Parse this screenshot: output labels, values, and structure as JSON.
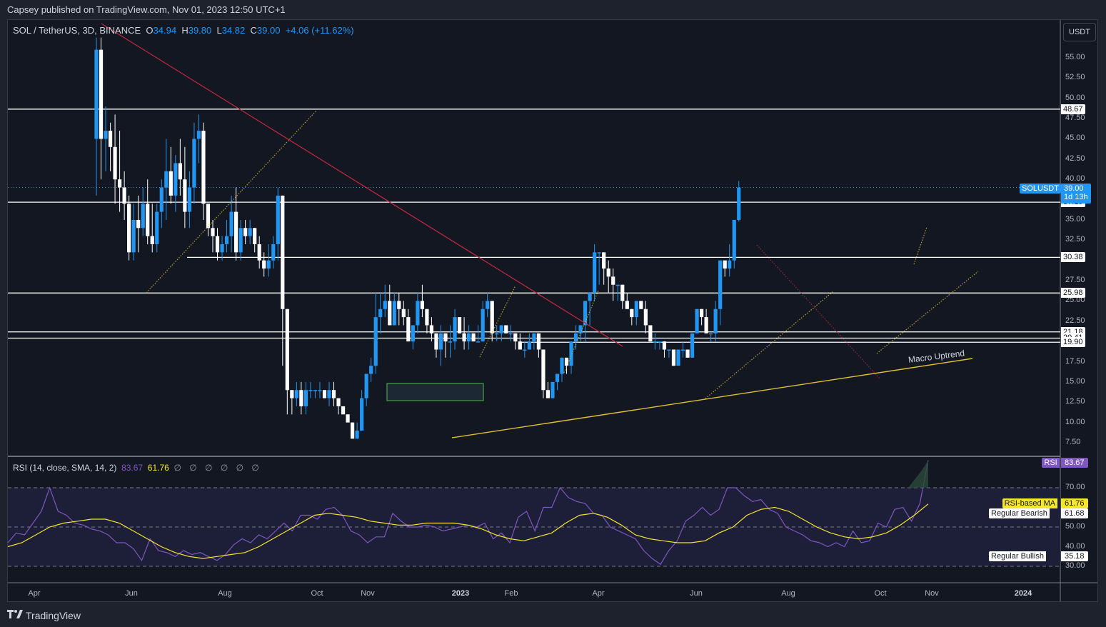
{
  "publish_line": "Capsey published on TradingView.com, Nov 01, 2023 12:50 UTC+1",
  "symbol": {
    "title": "SOL / TetherUS, 3D, BINANCE",
    "o_label": "O",
    "o": "34.94",
    "h_label": "H",
    "h": "39.80",
    "l_label": "L",
    "l": "34.82",
    "c_label": "C",
    "c": "39.00",
    "change": "+4.06 (+11.62%)"
  },
  "currency_button": "USDT",
  "price_axis": {
    "ticks": [
      "55.00",
      "52.50",
      "50.00",
      "47.50",
      "45.00",
      "42.50",
      "40.00",
      "35.00",
      "32.50",
      "27.50",
      "25.00",
      "22.50",
      "17.50",
      "15.00",
      "12.50",
      "10.00",
      "7.50"
    ],
    "level_tags": [
      "48.67",
      "37.19",
      "30.38",
      "25.98",
      "21.18",
      "20.41",
      "19.90"
    ],
    "last_price_tag": {
      "symbol": "SOLUSDT",
      "price": "39.00",
      "countdown": "1d 13h"
    }
  },
  "rsi": {
    "title": "RSI (14, close, SMA, 14, 2)",
    "value": "83.67",
    "ma_value": "61.76",
    "null_values": "∅ ∅ ∅ ∅ ∅ ∅",
    "axis_ticks": [
      "70.00",
      "50.00",
      "40.00",
      "30.00"
    ],
    "tags": {
      "rsi_label": "RSI",
      "rsi_value": "83.67",
      "ma_label": "RSI-based MA",
      "ma_value": "61.76",
      "bearish_label": "Regular Bearish",
      "bearish_value": "61.68",
      "bullish_label": "Regular Bullish",
      "bullish_value": "35.18"
    }
  },
  "time_axis": [
    "Apr",
    "Jun",
    "Aug",
    "Oct",
    "Nov",
    "2023",
    "Feb",
    "Apr",
    "Jun",
    "Aug",
    "Oct",
    "Nov",
    "2024"
  ],
  "annotation": "Macro Uptrend",
  "footer_brand": "TradingView",
  "colors": {
    "up": "#2196f3",
    "down": "#ffffff",
    "rsi": "#7e57c2",
    "rsi_ma": "#f5e52e",
    "trend": "#e0c02f",
    "resistance": "#c2283f",
    "range_box": "#4caf50"
  },
  "chart_data": {
    "type": "candlestick",
    "title": "SOL / TetherUS, 3D, BINANCE",
    "ylabel": "USDT",
    "ylim": [
      6,
      58
    ],
    "horizontal_levels": [
      48.67,
      37.19,
      30.38,
      25.98,
      21.18,
      20.41,
      19.9
    ],
    "last_close": 39.0,
    "candles_ohlc": [
      [
        45,
        58,
        38,
        56
      ],
      [
        56,
        58,
        40,
        45
      ],
      [
        45,
        49,
        41,
        46
      ],
      [
        46,
        47,
        41,
        44
      ],
      [
        44,
        48,
        37,
        40
      ],
      [
        40,
        46,
        36,
        39
      ],
      [
        39,
        41,
        35,
        37
      ],
      [
        37,
        38,
        30,
        31
      ],
      [
        31,
        37,
        30,
        35
      ],
      [
        35,
        38,
        31,
        34
      ],
      [
        34,
        39,
        33,
        37
      ],
      [
        37,
        40,
        32,
        33
      ],
      [
        33,
        37,
        31,
        32
      ],
      [
        32,
        37,
        31,
        36
      ],
      [
        36,
        40,
        34,
        39
      ],
      [
        39,
        45,
        35,
        41
      ],
      [
        41,
        44,
        37,
        38
      ],
      [
        38,
        43,
        36,
        42
      ],
      [
        42,
        45,
        38,
        40
      ],
      [
        40,
        44,
        34,
        36
      ],
      [
        36,
        41,
        34,
        39
      ],
      [
        39,
        47,
        37,
        45
      ],
      [
        45,
        48,
        42,
        46
      ],
      [
        46,
        47,
        35,
        37
      ],
      [
        37,
        35,
        33,
        34
      ],
      [
        34,
        35,
        31,
        33
      ],
      [
        33,
        34,
        30,
        31
      ],
      [
        31,
        33,
        30,
        32
      ],
      [
        32,
        35,
        31,
        33
      ],
      [
        33,
        38,
        31,
        36
      ],
      [
        36,
        39,
        30,
        31
      ],
      [
        31,
        35,
        30,
        34
      ],
      [
        34,
        35,
        32,
        33
      ],
      [
        33,
        35,
        32,
        34
      ],
      [
        34,
        34,
        31,
        32
      ],
      [
        32,
        33,
        29,
        30
      ],
      [
        30,
        31,
        28,
        29
      ],
      [
        29,
        32,
        28,
        30
      ],
      [
        30,
        33,
        29,
        32
      ],
      [
        32,
        39,
        30,
        38
      ],
      [
        38,
        38,
        17,
        24
      ],
      [
        24,
        24,
        11,
        14
      ],
      [
        14,
        14,
        11,
        13
      ],
      [
        13,
        15,
        12,
        14
      ],
      [
        14,
        15,
        11,
        12
      ],
      [
        12,
        15,
        11,
        14
      ],
      [
        14,
        15,
        13,
        14
      ],
      [
        14,
        14,
        13,
        14
      ],
      [
        14,
        15,
        13,
        14
      ],
      [
        14,
        14,
        13,
        13
      ],
      [
        13,
        15,
        12,
        14
      ],
      [
        14,
        15,
        12,
        13
      ],
      [
        13,
        13,
        11,
        12
      ],
      [
        12,
        12,
        11,
        11
      ],
      [
        11,
        11,
        10,
        10
      ],
      [
        10,
        10,
        8,
        8
      ],
      [
        8,
        10,
        8,
        9
      ],
      [
        9,
        14,
        9,
        13
      ],
      [
        13,
        16,
        12,
        16
      ],
      [
        16,
        18,
        15,
        17
      ],
      [
        17,
        26,
        16,
        23
      ],
      [
        23,
        26,
        21,
        24
      ],
      [
        24,
        27,
        23,
        25
      ],
      [
        25,
        27,
        22,
        22
      ],
      [
        22,
        26,
        23,
        25
      ],
      [
        25,
        26,
        22,
        24
      ],
      [
        24,
        25,
        22,
        23
      ],
      [
        23,
        24,
        20,
        20
      ],
      [
        20,
        22,
        19,
        22
      ],
      [
        22,
        26,
        21,
        25
      ],
      [
        25,
        27,
        23,
        24
      ],
      [
        24,
        24,
        21,
        22
      ],
      [
        22,
        23,
        20,
        21
      ],
      [
        21,
        21,
        18,
        19
      ],
      [
        19,
        22,
        17,
        21
      ],
      [
        21,
        21,
        18,
        20
      ],
      [
        20,
        22,
        18,
        20
      ],
      [
        20,
        24,
        19,
        23
      ],
      [
        23,
        23,
        21,
        21
      ],
      [
        21,
        23,
        19,
        20
      ],
      [
        20,
        22,
        19,
        21
      ],
      [
        21,
        21,
        20,
        20
      ],
      [
        20,
        22,
        20,
        20
      ],
      [
        20,
        25,
        20,
        24
      ],
      [
        24,
        26,
        23,
        25
      ],
      [
        25,
        25,
        20,
        21
      ],
      [
        21,
        22,
        20,
        21
      ],
      [
        21,
        22,
        20,
        22
      ],
      [
        22,
        22,
        21,
        21
      ],
      [
        21,
        22,
        20,
        21
      ],
      [
        21,
        21,
        19,
        20
      ],
      [
        20,
        21,
        19,
        19
      ],
      [
        19,
        20,
        18,
        19
      ],
      [
        19,
        21,
        19,
        20
      ],
      [
        20,
        21,
        19,
        21
      ],
      [
        21,
        21,
        18,
        19
      ],
      [
        19,
        19,
        13,
        14
      ],
      [
        14,
        15,
        13,
        13
      ],
      [
        13,
        15,
        13,
        15
      ],
      [
        15,
        16,
        14,
        16
      ],
      [
        16,
        18,
        15,
        18
      ],
      [
        18,
        18,
        16,
        17
      ],
      [
        17,
        20,
        16,
        20
      ],
      [
        20,
        22,
        19,
        21
      ],
      [
        21,
        21,
        20,
        22
      ],
      [
        22,
        25,
        20,
        25
      ],
      [
        25,
        26,
        22,
        26
      ],
      [
        26,
        32,
        25,
        31
      ],
      [
        31,
        30,
        27,
        31
      ],
      [
        31,
        31,
        27,
        29
      ],
      [
        29,
        30,
        26,
        28
      ],
      [
        28,
        29,
        25,
        27
      ],
      [
        27,
        27,
        25,
        27
      ],
      [
        27,
        27,
        24,
        25
      ],
      [
        25,
        26,
        24,
        24
      ],
      [
        24,
        24,
        22,
        23
      ],
      [
        23,
        25,
        22,
        25
      ],
      [
        25,
        25,
        24,
        24
      ],
      [
        24,
        25,
        21,
        22
      ],
      [
        22,
        22,
        20,
        20
      ],
      [
        20,
        21,
        19,
        20
      ],
      [
        20,
        20,
        19,
        20
      ],
      [
        20,
        20,
        18,
        19
      ],
      [
        19,
        19,
        18,
        19
      ],
      [
        19,
        19,
        17,
        17
      ],
      [
        17,
        19,
        17,
        19
      ],
      [
        19,
        20,
        18,
        19
      ],
      [
        19,
        19,
        18,
        18
      ],
      [
        18,
        20,
        18,
        21
      ],
      [
        21,
        24,
        21,
        24
      ],
      [
        24,
        24,
        22,
        23
      ],
      [
        23,
        24,
        21,
        21
      ],
      [
        21,
        21,
        20,
        21
      ],
      [
        21,
        25,
        20,
        24
      ],
      [
        24,
        25,
        22,
        30
      ],
      [
        30,
        30,
        28,
        29
      ],
      [
        29,
        32,
        28,
        30
      ],
      [
        30,
        35,
        29,
        35
      ],
      [
        35,
        39.8,
        34.8,
        39
      ]
    ],
    "rsi": {
      "values_approx": [
        42,
        47,
        46,
        52,
        58,
        70,
        58,
        56,
        52,
        51,
        49,
        48,
        46,
        42,
        42,
        39,
        33,
        44,
        38,
        37,
        35,
        38,
        36,
        37,
        35,
        33,
        36,
        41,
        44,
        42,
        46,
        44,
        48,
        52,
        48,
        56,
        56,
        54,
        59,
        60,
        56,
        48,
        46,
        42,
        45,
        45,
        57,
        53,
        50,
        50,
        51,
        50,
        48,
        49,
        50,
        51,
        50,
        52,
        44,
        47,
        42,
        55,
        58,
        48,
        60,
        60,
        70,
        65,
        63,
        62,
        57,
        56,
        50,
        48,
        46,
        44,
        38,
        34,
        31,
        38,
        43,
        53,
        56,
        60,
        56,
        59,
        70,
        70,
        66,
        63,
        64,
        59,
        57,
        50,
        48,
        46,
        43,
        42,
        40,
        42,
        40,
        48,
        42,
        43,
        52,
        50,
        59,
        60,
        53,
        62,
        84
      ],
      "ma_values_approx": [
        40,
        42,
        46,
        50,
        52,
        53,
        54,
        54,
        52,
        48,
        44,
        40,
        37,
        35,
        34,
        35,
        36,
        37,
        40,
        44,
        48,
        52,
        56,
        57,
        56,
        55,
        53,
        52,
        51,
        51,
        52,
        52,
        52,
        51,
        49,
        46,
        44,
        43,
        45,
        47,
        52,
        56,
        57,
        55,
        51,
        46,
        44,
        43,
        42,
        42,
        43,
        47,
        50,
        56,
        59,
        60,
        58,
        54,
        50,
        47,
        45,
        44,
        45,
        47,
        51,
        56,
        61.76
      ],
      "overbought": 70,
      "midline": 50,
      "oversold": 30,
      "last": 83.67,
      "ma_last": 61.76
    },
    "drawings": {
      "descending_resistance": "from Mar 2022 high (~57) down through Nov 2022 (~38) to Mar 2023 (~20)",
      "macro_uptrend": "from Dec 2022 low (~8) through Jun 2023 low (~13) to ~18 at end",
      "range_box": "Nov-Dec 2022, 13-15",
      "annotation": "Macro Uptrend"
    }
  }
}
